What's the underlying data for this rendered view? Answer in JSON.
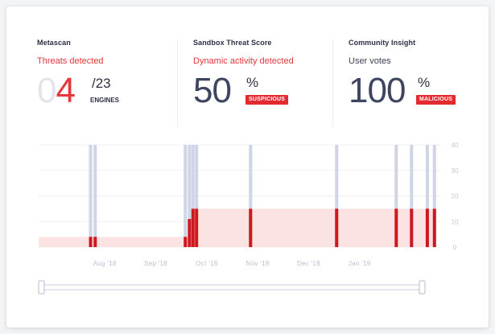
{
  "panels": {
    "metascan": {
      "title": "Metascan",
      "status": "Threats detected",
      "value_dim": "0",
      "value_red": "4",
      "total": "/23",
      "unit": "ENGINES"
    },
    "sandbox": {
      "title": "Sandbox Threat Score",
      "status": "Dynamic activity detected",
      "value": "50",
      "unit": "%",
      "badge": "SUSPICIOUS"
    },
    "community": {
      "title": "Community Insight",
      "status": "User votes",
      "value": "100",
      "unit": "%",
      "badge": "MALICIOUS"
    }
  },
  "colors": {
    "accent_red": "#e22a2f",
    "bar_grey": "#cfd5e6",
    "bar_red": "#d0171d",
    "area_fill": "#fbe3e3"
  },
  "chart_data": {
    "type": "bar",
    "ylim": [
      0,
      40
    ],
    "yticks": [
      "0",
      "10",
      "20",
      "30",
      "40"
    ],
    "xticks": [
      "Aug '18",
      "Sep '18",
      "Oct '18",
      "Nov '18",
      "Dec '18",
      "Jan '19"
    ],
    "xlim": [
      -1.3,
      6.6
    ],
    "total_engines": 40,
    "detections": [
      {
        "t": -0.28,
        "v": 4
      },
      {
        "t": -0.19,
        "v": 4
      },
      {
        "t": 1.58,
        "v": 4
      },
      {
        "t": 1.66,
        "v": 11
      },
      {
        "t": 1.73,
        "v": 15
      },
      {
        "t": 1.8,
        "v": 15
      },
      {
        "t": 2.86,
        "v": 15
      },
      {
        "t": 4.55,
        "v": 15
      },
      {
        "t": 5.72,
        "v": 15
      },
      {
        "t": 6.02,
        "v": 15
      },
      {
        "t": 6.33,
        "v": 15
      },
      {
        "t": 6.47,
        "v": 15
      }
    ],
    "area_steps": [
      {
        "from": -1.3,
        "to": 1.66,
        "v": 4
      },
      {
        "from": 1.66,
        "to": 6.5,
        "v": 15
      }
    ]
  },
  "range_slider": {
    "start": 0,
    "end": 1
  }
}
